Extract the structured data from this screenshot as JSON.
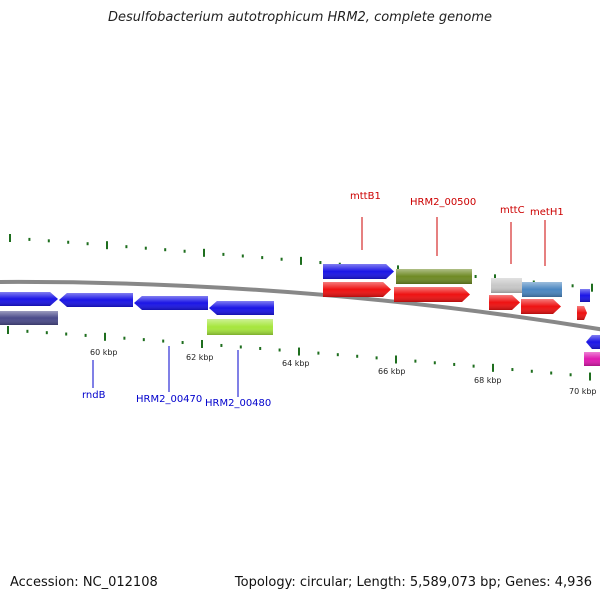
{
  "title": "Desulfobacterium autotrophicum HRM2, complete genome",
  "footer": {
    "accession": "Accession: NC_012108",
    "summary": "Topology: circular; Length: 5,589,073 bp; Genes: 4,936"
  },
  "colors": {
    "blue": "#1a14e6",
    "red": "#ee1111",
    "olive": "#6e8a24",
    "lime": "#a6e63c",
    "grey": "#c8c8c8",
    "steel": "#4a86c0",
    "navy": "#4a4a8a",
    "magenta": "#e01ab0",
    "tick": "#1e6e1e",
    "backbone": "#888888",
    "label_forward": "#cc0000",
    "label_reverse": "#0000cc"
  },
  "scale_labels": [
    "60 kbp",
    "62 kbp",
    "64 kbp",
    "66 kbp",
    "68 kbp",
    "70 kbp"
  ],
  "labels_forward": [
    "mttB1",
    "HRM2_00500",
    "mttC",
    "metH1"
  ],
  "labels_reverse": [
    "rndB",
    "HRM2_00470",
    "HRM2_00480"
  ]
}
